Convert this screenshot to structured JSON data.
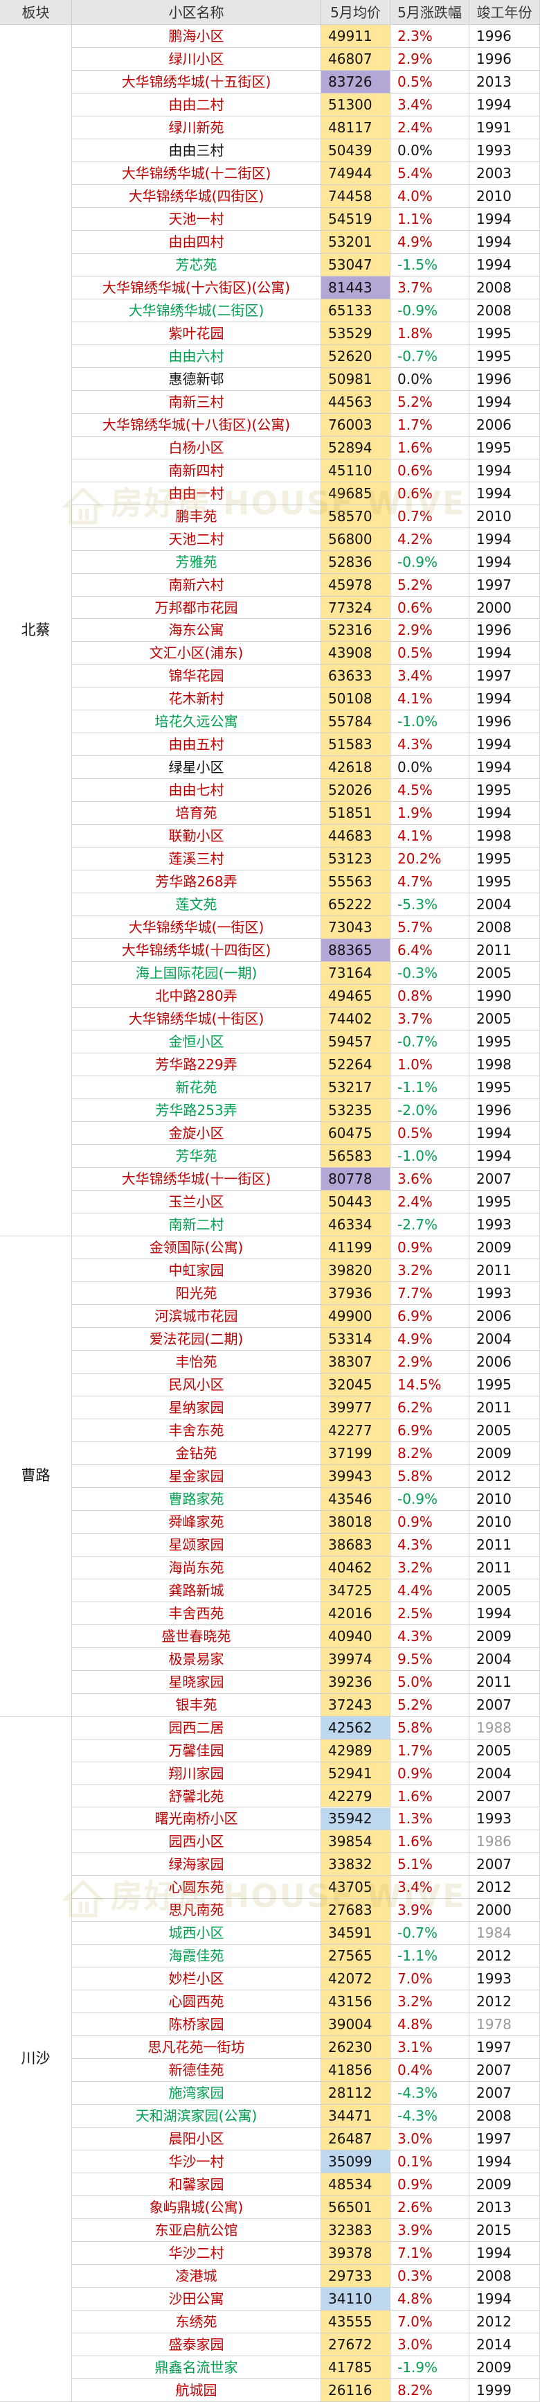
{
  "table": {
    "headers": {
      "district": "板块",
      "name": "小区名称",
      "price": "5月均价",
      "change": "5月涨跌幅",
      "year": "竣工年份"
    },
    "colors": {
      "up": "#c00000",
      "down": "#00a050",
      "flat": "#111111",
      "price_default": "#ffe699",
      "price_purple": "#b4a7d6",
      "price_blue": "#bdd7ee",
      "year_old": "#999999"
    },
    "sections": [
      {
        "district": "北蔡",
        "rows": [
          [
            "鹏海小区",
            "49911",
            "2.3%",
            "1996"
          ],
          [
            "绿川小区",
            "46807",
            "2.9%",
            "1996"
          ],
          [
            "大华锦绣华城(十五街区)",
            "83726",
            "0.5%",
            "2013"
          ],
          [
            "由由二村",
            "51300",
            "3.4%",
            "1994"
          ],
          [
            "绿川新苑",
            "48117",
            "2.4%",
            "1991"
          ],
          [
            "由由三村",
            "50439",
            "0.0%",
            "1993"
          ],
          [
            "大华锦绣华城(十二街区)",
            "74944",
            "5.4%",
            "2003"
          ],
          [
            "大华锦绣华城(四街区)",
            "74458",
            "4.0%",
            "2010"
          ],
          [
            "天池一村",
            "54519",
            "1.1%",
            "1994"
          ],
          [
            "由由四村",
            "53201",
            "4.9%",
            "1994"
          ],
          [
            "芳芯苑",
            "53047",
            "-1.5%",
            "1994"
          ],
          [
            "大华锦绣华城(十六街区)(公寓)",
            "81443",
            "3.7%",
            "2008"
          ],
          [
            "大华锦绣华城(二街区)",
            "65133",
            "-0.9%",
            "2008"
          ],
          [
            "紫叶花园",
            "53529",
            "1.8%",
            "1995"
          ],
          [
            "由由六村",
            "52620",
            "-0.7%",
            "1995"
          ],
          [
            "惠德新邨",
            "50981",
            "0.0%",
            "1996"
          ],
          [
            "南新三村",
            "44563",
            "5.2%",
            "1994"
          ],
          [
            "大华锦绣华城(十八街区)(公寓)",
            "76003",
            "1.7%",
            "2006"
          ],
          [
            "白杨小区",
            "52894",
            "1.6%",
            "1995"
          ],
          [
            "南新四村",
            "45110",
            "0.6%",
            "1994"
          ],
          [
            "由由一村",
            "49685",
            "0.6%",
            "1994"
          ],
          [
            "鹏丰苑",
            "58570",
            "0.7%",
            "2010"
          ],
          [
            "天池二村",
            "56800",
            "4.2%",
            "1994"
          ],
          [
            "芳雅苑",
            "52836",
            "-0.9%",
            "1994"
          ],
          [
            "南新六村",
            "45978",
            "5.2%",
            "1997"
          ],
          [
            "万邦都市花园",
            "77324",
            "0.6%",
            "2000"
          ],
          [
            "海东公寓",
            "52316",
            "2.9%",
            "1996"
          ],
          [
            "文汇小区(浦东)",
            "43908",
            "0.5%",
            "1994"
          ],
          [
            "锦华花园",
            "63633",
            "3.4%",
            "1997"
          ],
          [
            "花木新村",
            "50108",
            "4.1%",
            "1994"
          ],
          [
            "培花久远公寓",
            "55784",
            "-1.0%",
            "1996"
          ],
          [
            "由由五村",
            "51583",
            "4.3%",
            "1994"
          ],
          [
            "绿星小区",
            "42618",
            "0.0%",
            "1994"
          ],
          [
            "由由七村",
            "52026",
            "4.5%",
            "1995"
          ],
          [
            "培育苑",
            "51851",
            "1.9%",
            "1994"
          ],
          [
            "联勤小区",
            "44683",
            "4.1%",
            "1998"
          ],
          [
            "莲溪三村",
            "53123",
            "20.2%",
            "1995"
          ],
          [
            "芳华路268弄",
            "55563",
            "4.7%",
            "1995"
          ],
          [
            "莲文苑",
            "65222",
            "-5.3%",
            "2004"
          ],
          [
            "大华锦绣华城(一街区)",
            "73043",
            "5.7%",
            "2008"
          ],
          [
            "大华锦绣华城(十四街区)",
            "88365",
            "6.4%",
            "2011"
          ],
          [
            "海上国际花园(一期)",
            "73164",
            "-0.3%",
            "2005"
          ],
          [
            "北中路280弄",
            "49465",
            "0.8%",
            "1990"
          ],
          [
            "大华锦绣华城(十街区)",
            "74402",
            "3.7%",
            "2005"
          ],
          [
            "金恒小区",
            "59457",
            "-0.7%",
            "1995"
          ],
          [
            "芳华路229弄",
            "52264",
            "1.0%",
            "1998"
          ],
          [
            "新花苑",
            "53217",
            "-1.1%",
            "1995"
          ],
          [
            "芳华路253弄",
            "53235",
            "-2.0%",
            "1996"
          ],
          [
            "金旋小区",
            "60475",
            "0.5%",
            "1994"
          ],
          [
            "芳华苑",
            "56583",
            "-1.0%",
            "1994"
          ],
          [
            "大华锦绣华城(十一街区)",
            "80778",
            "3.6%",
            "2007"
          ],
          [
            "玉兰小区",
            "50443",
            "2.4%",
            "1995"
          ],
          [
            "南新二村",
            "46334",
            "-2.7%",
            "1993"
          ]
        ]
      },
      {
        "district": "曹路",
        "rows": [
          [
            "金领国际(公寓)",
            "41199",
            "0.9%",
            "2009"
          ],
          [
            "中虹家园",
            "39820",
            "3.2%",
            "2011"
          ],
          [
            "阳光苑",
            "37936",
            "7.7%",
            "1993"
          ],
          [
            "河滨城市花园",
            "49900",
            "6.9%",
            "2006"
          ],
          [
            "爱法花园(二期)",
            "53314",
            "4.9%",
            "2004"
          ],
          [
            "丰怡苑",
            "38307",
            "2.9%",
            "2006"
          ],
          [
            "民风小区",
            "32045",
            "14.5%",
            "1995"
          ],
          [
            "星纳家园",
            "39977",
            "6.2%",
            "2011"
          ],
          [
            "丰舍东苑",
            "42277",
            "6.9%",
            "2005"
          ],
          [
            "金钻苑",
            "37199",
            "8.2%",
            "2009"
          ],
          [
            "星金家园",
            "39943",
            "5.8%",
            "2012"
          ],
          [
            "曹路家苑",
            "43546",
            "-0.9%",
            "2010"
          ],
          [
            "舜峰家苑",
            "38018",
            "0.9%",
            "2010"
          ],
          [
            "星颂家园",
            "38683",
            "4.3%",
            "2011"
          ],
          [
            "海尚东苑",
            "40462",
            "3.2%",
            "2011"
          ],
          [
            "龚路新城",
            "34725",
            "4.4%",
            "2005"
          ],
          [
            "丰舍西苑",
            "42016",
            "2.5%",
            "1994"
          ],
          [
            "盛世春晓苑",
            "40940",
            "4.3%",
            "2009"
          ],
          [
            "极景易家",
            "39974",
            "9.5%",
            "2004"
          ],
          [
            "星晓家园",
            "39236",
            "5.0%",
            "2011"
          ],
          [
            "银丰苑",
            "37243",
            "5.2%",
            "2007"
          ]
        ]
      },
      {
        "district": "川沙",
        "rows": [
          [
            "园西二居",
            "42562",
            "5.8%",
            "1988"
          ],
          [
            "万馨佳园",
            "42989",
            "1.7%",
            "2005"
          ],
          [
            "翔川家园",
            "52941",
            "0.9%",
            "2004"
          ],
          [
            "舒馨北苑",
            "42279",
            "1.6%",
            "2007"
          ],
          [
            "曙光南桥小区",
            "35942",
            "1.3%",
            "1993"
          ],
          [
            "园西小区",
            "39854",
            "1.6%",
            "1986"
          ],
          [
            "绿海家园",
            "33832",
            "5.1%",
            "2007"
          ],
          [
            "心圆东苑",
            "43705",
            "3.4%",
            "2012"
          ],
          [
            "思凡南苑",
            "27683",
            "3.9%",
            "2000"
          ],
          [
            "城西小区",
            "34591",
            "-0.7%",
            "1984"
          ],
          [
            "海霞佳苑",
            "27565",
            "-1.1%",
            "2012"
          ],
          [
            "妙栏小区",
            "42072",
            "7.0%",
            "1993"
          ],
          [
            "心圆西苑",
            "43156",
            "3.2%",
            "2012"
          ],
          [
            "陈桥家园",
            "39004",
            "4.8%",
            "1978"
          ],
          [
            "思凡花苑一街坊",
            "26230",
            "3.1%",
            "1997"
          ],
          [
            "新德佳苑",
            "41856",
            "0.4%",
            "2007"
          ],
          [
            "施湾家园",
            "28112",
            "-4.3%",
            "2007"
          ],
          [
            "天和湖滨家园(公寓)",
            "34471",
            "-4.3%",
            "2008"
          ],
          [
            "晨阳小区",
            "26487",
            "3.0%",
            "1997"
          ],
          [
            "华沙一村",
            "35099",
            "0.1%",
            "1994"
          ],
          [
            "和馨家园",
            "48534",
            "0.9%",
            "2009"
          ],
          [
            "象屿鼎城(公寓)",
            "56501",
            "2.6%",
            "2013"
          ],
          [
            "东亚启航公馆",
            "32383",
            "3.9%",
            "2015"
          ],
          [
            "华沙二村",
            "39378",
            "7.1%",
            "1994"
          ],
          [
            "凌港城",
            "29733",
            "0.3%",
            "2008"
          ],
          [
            "沙田公寓",
            "34110",
            "4.8%",
            "1994"
          ],
          [
            "东绣苑",
            "43555",
            "7.0%",
            "2012"
          ],
          [
            "盛泰家园",
            "27672",
            "3.0%",
            "2014"
          ],
          [
            "鼎鑫名流世家",
            "41785",
            "-1.9%",
            "2009"
          ],
          [
            "航城园",
            "26116",
            "8.2%",
            "1999"
          ]
        ]
      }
    ],
    "purple_rows": [
      "大华锦绣华城(十五街区)",
      "大华锦绣华城(十六街区)(公寓)",
      "大华锦绣华城(十四街区)",
      "大华锦绣华城(十一街区)"
    ],
    "blue_rows": [
      "园西二居",
      "曙光南桥小区",
      "华沙一村",
      "沙田公寓"
    ]
  },
  "watermark": {
    "text_top": "房好居",
    "text_bottom": "HOUSE WIVE"
  }
}
